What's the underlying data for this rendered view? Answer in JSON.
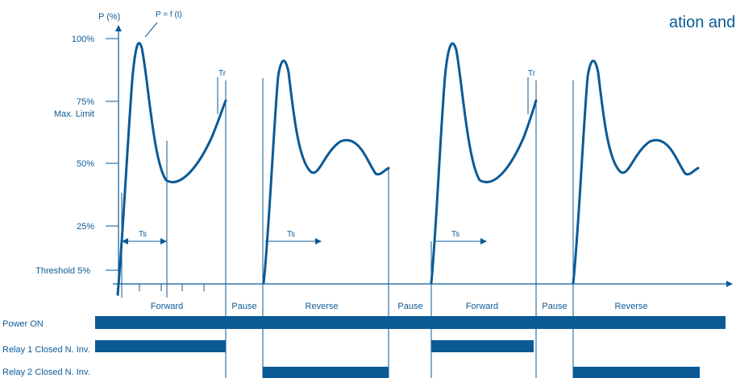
{
  "top_text": "ation and start",
  "y_axis": {
    "title": "P (%)",
    "ticks": [
      "100%",
      "75%",
      "50%",
      "25%"
    ],
    "max_limit": "Max. Limit",
    "threshold": "Threshold 5%"
  },
  "curve_label": "P = f (t)",
  "time_markers": {
    "ts": "Ts",
    "tr": "Tr"
  },
  "phases": [
    "Forward",
    "Pause",
    "Reverse",
    "Pause",
    "Forward",
    "Pause",
    "Reverse"
  ],
  "rows": {
    "power": "Power  ON",
    "relay1": "Relay 1 Closed N. Inv.",
    "relay2": "Relay 2 Closed N. Inv."
  },
  "colors": {
    "primary": "#0b5a95"
  }
}
